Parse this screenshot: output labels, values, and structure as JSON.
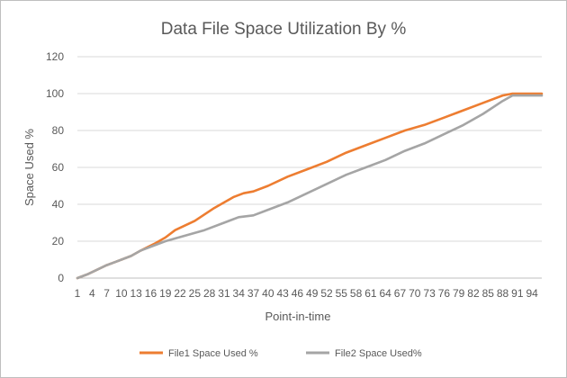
{
  "chart_data": {
    "type": "line",
    "title": "Data File Space Utilization By %",
    "xlabel": "Point-in-time",
    "ylabel": "Space Used %",
    "ylim": [
      0,
      120
    ],
    "yticks": [
      0,
      20,
      40,
      60,
      80,
      100,
      120
    ],
    "x_start": 1,
    "x_end": 96,
    "x_tick_labels": [
      "1",
      "4",
      "7",
      "10",
      "13",
      "16",
      "19",
      "22",
      "25",
      "28",
      "31",
      "34",
      "37",
      "40",
      "43",
      "46",
      "49",
      "52",
      "55",
      "58",
      "61",
      "64",
      "67",
      "70",
      "73",
      "76",
      "79",
      "82",
      "85",
      "88",
      "91",
      "94"
    ],
    "grid": true,
    "legend": "bottom",
    "series": [
      {
        "name": "File1 Space Used %",
        "color": "#ed7d31",
        "points": [
          [
            1,
            0
          ],
          [
            3,
            2
          ],
          [
            7,
            7
          ],
          [
            10,
            10
          ],
          [
            12,
            12
          ],
          [
            14,
            15
          ],
          [
            17,
            19
          ],
          [
            19,
            22
          ],
          [
            21,
            26
          ],
          [
            25,
            31
          ],
          [
            29,
            38
          ],
          [
            33,
            44
          ],
          [
            35,
            46
          ],
          [
            37,
            47
          ],
          [
            40,
            50
          ],
          [
            44,
            55
          ],
          [
            48,
            59
          ],
          [
            52,
            63
          ],
          [
            56,
            68
          ],
          [
            60,
            72
          ],
          [
            64,
            76
          ],
          [
            68,
            80
          ],
          [
            72,
            83
          ],
          [
            76,
            87
          ],
          [
            80,
            91
          ],
          [
            84,
            95
          ],
          [
            88,
            99
          ],
          [
            90,
            100
          ],
          [
            96,
            100
          ]
        ]
      },
      {
        "name": "File2 Space Used%",
        "color": "#a5a5a5",
        "points": [
          [
            1,
            0
          ],
          [
            3,
            2
          ],
          [
            7,
            7
          ],
          [
            10,
            10
          ],
          [
            12,
            12
          ],
          [
            14,
            15
          ],
          [
            17,
            18
          ],
          [
            19,
            20
          ],
          [
            23,
            23
          ],
          [
            27,
            26
          ],
          [
            31,
            30
          ],
          [
            34,
            33
          ],
          [
            37,
            34
          ],
          [
            40,
            37
          ],
          [
            44,
            41
          ],
          [
            48,
            46
          ],
          [
            52,
            51
          ],
          [
            56,
            56
          ],
          [
            60,
            60
          ],
          [
            64,
            64
          ],
          [
            68,
            69
          ],
          [
            72,
            73
          ],
          [
            76,
            78
          ],
          [
            80,
            83
          ],
          [
            84,
            89
          ],
          [
            88,
            96
          ],
          [
            90,
            99
          ],
          [
            96,
            99
          ]
        ]
      }
    ]
  }
}
